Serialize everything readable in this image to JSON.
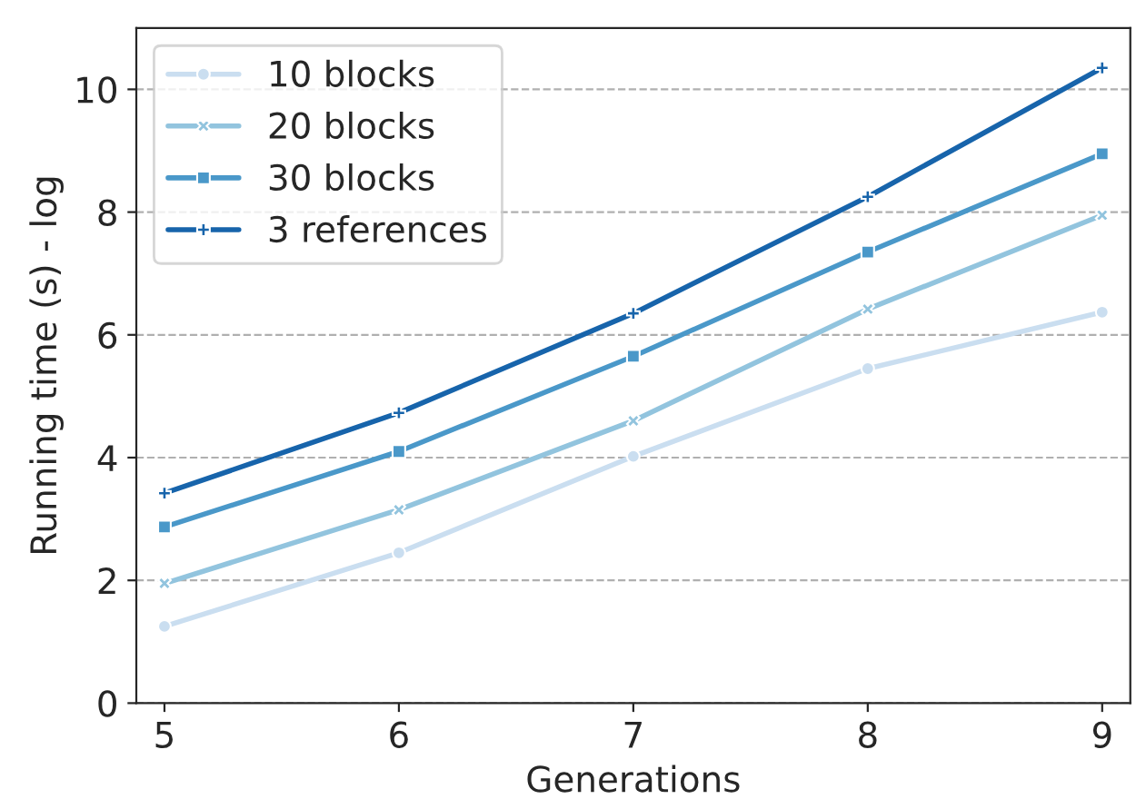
{
  "chart_data": {
    "type": "line",
    "xlabel": "Generations",
    "ylabel": "Running time (s) - log",
    "x": [
      5,
      6,
      7,
      8,
      9
    ],
    "series": [
      {
        "name": "10 blocks",
        "color": "#cadef0",
        "marker": "circle",
        "values": [
          1.25,
          2.45,
          4.02,
          5.45,
          6.37
        ]
      },
      {
        "name": "20 blocks",
        "color": "#92c4de",
        "marker": "cross",
        "values": [
          1.95,
          3.15,
          4.6,
          6.42,
          7.95
        ]
      },
      {
        "name": "30 blocks",
        "color": "#4a98c9",
        "marker": "square",
        "values": [
          2.87,
          4.1,
          5.65,
          7.35,
          8.95
        ]
      },
      {
        "name": "3 references",
        "color": "#1764ab",
        "marker": "plus",
        "values": [
          3.42,
          4.73,
          6.35,
          8.25,
          10.35
        ]
      }
    ],
    "xlim": [
      4.88,
      9.12
    ],
    "ylim": [
      0,
      11
    ],
    "xticks": [
      5,
      6,
      7,
      8,
      9
    ],
    "yticks": [
      0,
      2,
      4,
      6,
      8,
      10
    ],
    "grid": "y",
    "legend": "top left",
    "line_style": "solid"
  }
}
